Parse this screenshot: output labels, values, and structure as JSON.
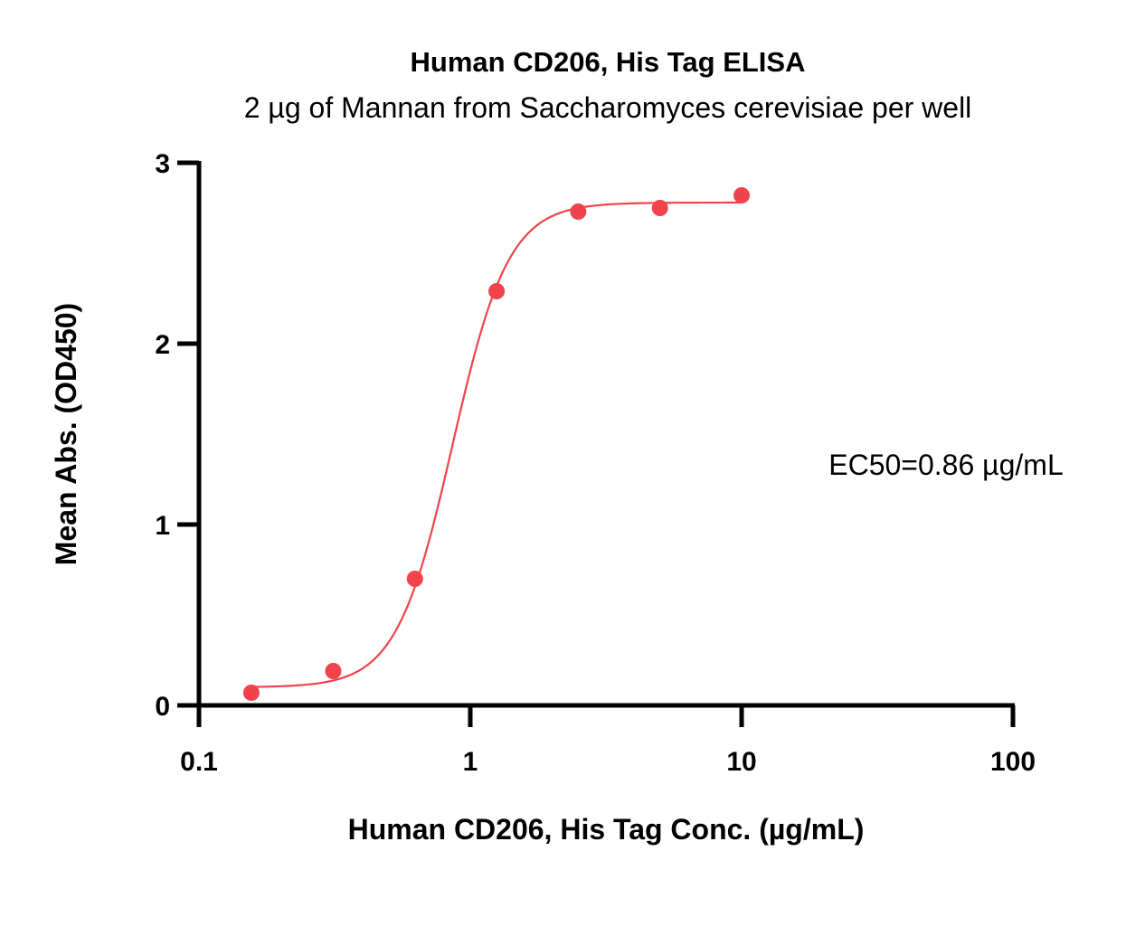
{
  "chart_data": {
    "type": "scatter",
    "title": "Human CD206, His Tag ELISA",
    "subtitle": "2 µg of Mannan from Saccharomyces cerevisiae per well",
    "xlabel": "Human CD206, His Tag Conc. (µg/mL)",
    "ylabel": "Mean Abs. (OD450)",
    "x_scale": "log",
    "xlim": [
      0.1,
      100
    ],
    "ylim": [
      0,
      3
    ],
    "x_ticks": [
      0.1,
      1,
      10,
      100
    ],
    "x_tick_labels": [
      "0.1",
      "1",
      "10",
      "100"
    ],
    "y_ticks": [
      0,
      1,
      2,
      3
    ],
    "y_tick_labels": [
      "0",
      "1",
      "2",
      "3"
    ],
    "grid": false,
    "legend": "none",
    "series": [
      {
        "x": [
          0.156,
          0.3125,
          0.625,
          1.25,
          2.5,
          5,
          10
        ],
        "y": [
          0.07,
          0.19,
          0.7,
          2.29,
          2.73,
          2.75,
          2.82
        ]
      }
    ],
    "fit": {
      "model": "4PL",
      "bottom": 0.1,
      "top": 2.78,
      "ec50": 0.86,
      "hill": 4.2
    },
    "annotations": [
      "EC50=0.86 µg/mL"
    ],
    "colors": {
      "series": "#F0434B",
      "axis": "#000000"
    }
  }
}
